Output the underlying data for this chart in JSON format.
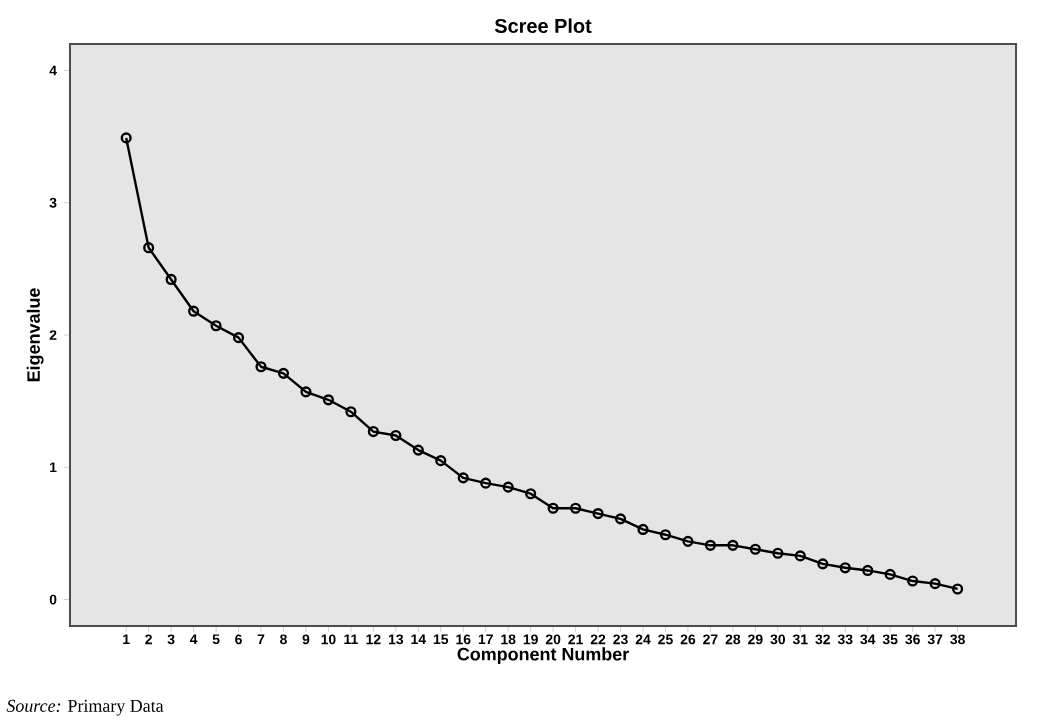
{
  "chart_data": {
    "type": "line",
    "title": "Scree Plot",
    "xlabel": "Component Number",
    "ylabel": "Eigenvalue",
    "categories": [
      "1",
      "2",
      "3",
      "4",
      "5",
      "6",
      "7",
      "8",
      "9",
      "10",
      "11",
      "12",
      "13",
      "14",
      "15",
      "16",
      "17",
      "18",
      "19",
      "20",
      "21",
      "22",
      "23",
      "24",
      "25",
      "26",
      "27",
      "28",
      "29",
      "30",
      "31",
      "32",
      "33",
      "34",
      "35",
      "36",
      "37",
      "38"
    ],
    "values": [
      3.49,
      2.66,
      2.42,
      2.18,
      2.07,
      1.98,
      1.76,
      1.71,
      1.57,
      1.51,
      1.42,
      1.27,
      1.24,
      1.13,
      1.05,
      0.92,
      0.88,
      0.85,
      0.8,
      0.69,
      0.69,
      0.65,
      0.61,
      0.53,
      0.49,
      0.44,
      0.41,
      0.41,
      0.38,
      0.35,
      0.33,
      0.27,
      0.24,
      0.22,
      0.19,
      0.14,
      0.12,
      0.08
    ],
    "color": "#000000",
    "marker": "circle",
    "grid": false,
    "ylim": [
      -0.2,
      4.2
    ],
    "yticks": [
      0,
      1,
      2,
      3,
      4
    ],
    "annotations": [
      "*Source:* Primary Data"
    ]
  }
}
